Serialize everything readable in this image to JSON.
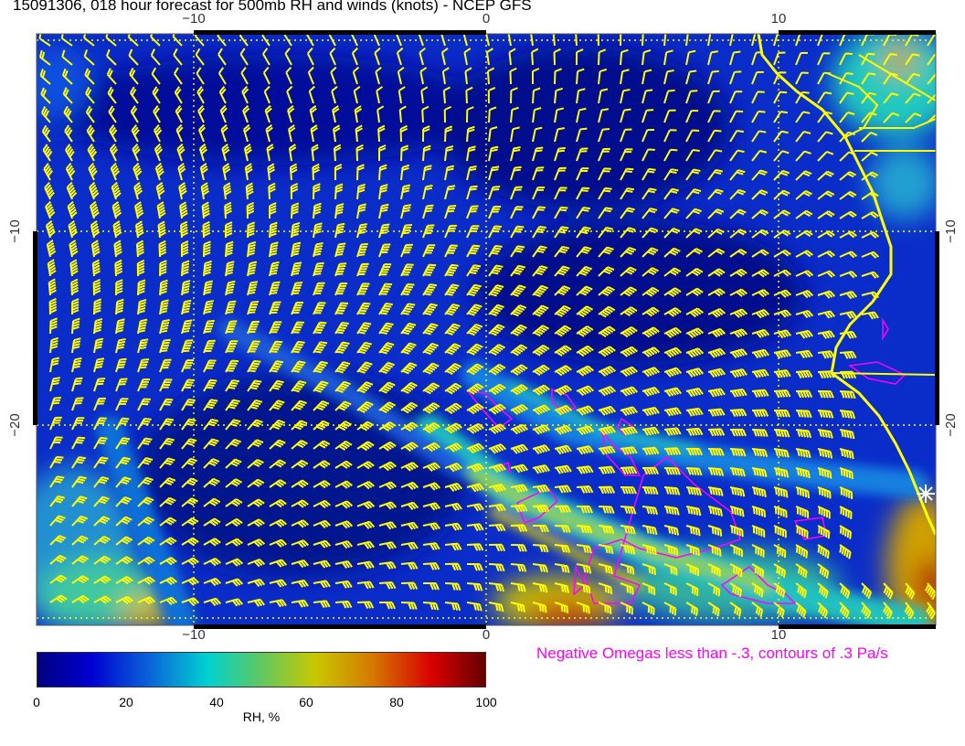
{
  "title": "15091306, 018 hour forecast for 500mb RH and winds (knots) - NCEP GFS",
  "map": {
    "longitude_ticks": [
      "−10",
      "0",
      "10"
    ],
    "latitude_ticks": [
      "−10",
      "−20"
    ],
    "field": "500mb relative humidity (filled)",
    "overlays": [
      "wind barbs (knots)",
      "negative omega contours",
      "coastlines"
    ],
    "colors": {
      "barbs": "#ffff00",
      "coastline": "#ffff00",
      "omega_contours": "#ff00ff",
      "graticule": "#ffff00"
    }
  },
  "omega_note": "Negative Omegas less than -.3, contours of .3 Pa/s",
  "colorbar": {
    "ticks": [
      "0",
      "20",
      "40",
      "60",
      "80",
      "100"
    ],
    "label": "RH, %",
    "range": [
      0,
      100
    ]
  }
}
